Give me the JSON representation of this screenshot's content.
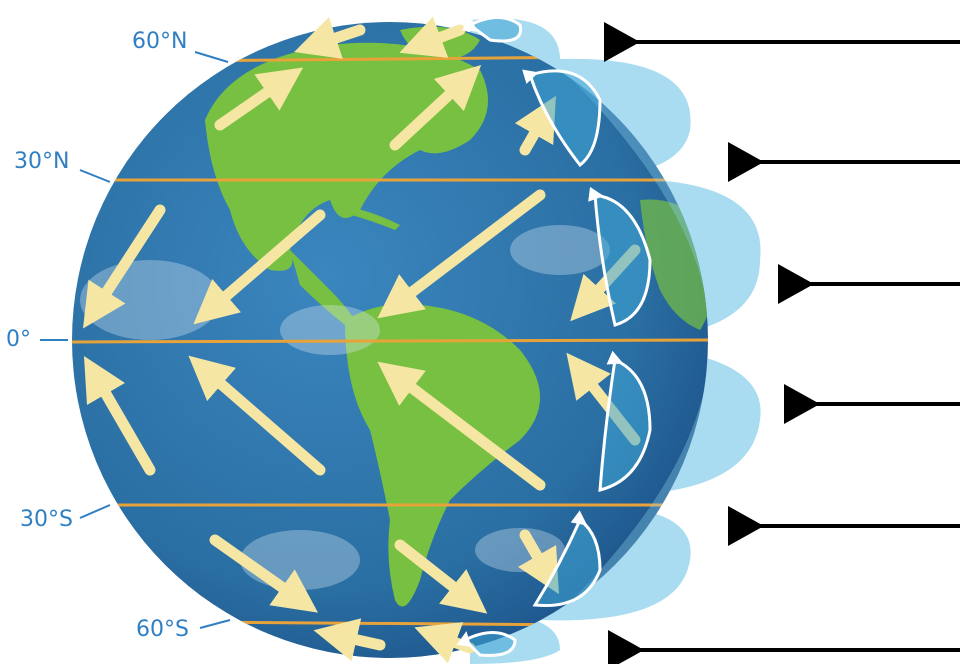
{
  "latitude_labels": {
    "n60": "60°N",
    "n30": "30°N",
    "eq": "0°",
    "s30": "30°S",
    "s60": "60°S"
  },
  "colors": {
    "ocean": "#2a6fa3",
    "ocean_dark": "#1b4f86",
    "land": "#78c041",
    "latitude_line": "#e8a23a",
    "wind_arrow": "#f6e6a4",
    "cell": "#a9dcf1",
    "cell_inner": "#3fa6d6",
    "label": "#2f7fc2",
    "incoming_arrow": "#000000"
  },
  "icons": {
    "wind": "wind-arrow-icon",
    "cell": "circulation-cell-icon",
    "incoming": "arrow-left-icon"
  }
}
